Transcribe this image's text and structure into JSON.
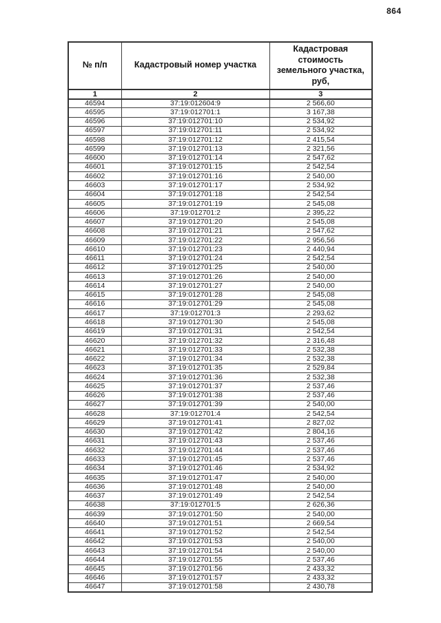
{
  "page": {
    "number": "864"
  },
  "table": {
    "headers": [
      "№ п/п",
      "Кадастровый номер участка",
      "Кадастровая стоимость земельного участка, руб,"
    ],
    "column_numbers": [
      "1",
      "2",
      "3"
    ],
    "rows": [
      [
        "46594",
        "37:19:012604:9",
        "2 566,60"
      ],
      [
        "46595",
        "37:19:012701:1",
        "3 167,38"
      ],
      [
        "46596",
        "37:19:012701:10",
        "2 534,92"
      ],
      [
        "46597",
        "37:19:012701:11",
        "2 534,92"
      ],
      [
        "46598",
        "37:19:012701:12",
        "2 415,54"
      ],
      [
        "46599",
        "37:19:012701:13",
        "2 321,56"
      ],
      [
        "46600",
        "37:19:012701:14",
        "2 547,62"
      ],
      [
        "46601",
        "37:19:012701:15",
        "2 542,54"
      ],
      [
        "46602",
        "37:19:012701:16",
        "2 540,00"
      ],
      [
        "46603",
        "37:19:012701:17",
        "2 534,92"
      ],
      [
        "46604",
        "37:19:012701:18",
        "2 542,54"
      ],
      [
        "46605",
        "37:19:012701:19",
        "2 545,08"
      ],
      [
        "46606",
        "37:19:012701:2",
        "2 395,22"
      ],
      [
        "46607",
        "37:19:012701:20",
        "2 545,08"
      ],
      [
        "46608",
        "37:19:012701:21",
        "2 547,62"
      ],
      [
        "46609",
        "37:19:012701:22",
        "2 956,56"
      ],
      [
        "46610",
        "37:19:012701:23",
        "2 440,94"
      ],
      [
        "46611",
        "37:19:012701:24",
        "2 542,54"
      ],
      [
        "46612",
        "37:19:012701:25",
        "2 540,00"
      ],
      [
        "46613",
        "37:19:012701:26",
        "2 540,00"
      ],
      [
        "46614",
        "37:19:012701:27",
        "2 540,00"
      ],
      [
        "46615",
        "37:19:012701:28",
        "2 545,08"
      ],
      [
        "46616",
        "37:19:012701:29",
        "2 545,08"
      ],
      [
        "46617",
        "37:19:012701:3",
        "2 293,62"
      ],
      [
        "46618",
        "37:19:012701:30",
        "2 545,08"
      ],
      [
        "46619",
        "37:19:012701:31",
        "2 542,54"
      ],
      [
        "46620",
        "37:19:012701:32",
        "2 316,48"
      ],
      [
        "46621",
        "37:19:012701:33",
        "2 532,38"
      ],
      [
        "46622",
        "37:19:012701:34",
        "2 532,38"
      ],
      [
        "46623",
        "37:19:012701:35",
        "2 529,84"
      ],
      [
        "46624",
        "37:19:012701:36",
        "2 532,38"
      ],
      [
        "46625",
        "37:19:012701:37",
        "2 537,46"
      ],
      [
        "46626",
        "37:19:012701:38",
        "2 537,46"
      ],
      [
        "46627",
        "37:19:012701:39",
        "2 540,00"
      ],
      [
        "46628",
        "37:19:012701:4",
        "2 542,54"
      ],
      [
        "46629",
        "37:19:012701:41",
        "2 827,02"
      ],
      [
        "46630",
        "37:19:012701:42",
        "2 804,16"
      ],
      [
        "46631",
        "37:19:012701:43",
        "2 537,46"
      ],
      [
        "46632",
        "37:19:012701:44",
        "2 537,46"
      ],
      [
        "46633",
        "37:19:012701:45",
        "2 537,46"
      ],
      [
        "46634",
        "37:19:012701:46",
        "2 534,92"
      ],
      [
        "46635",
        "37:19:012701:47",
        "2 540,00"
      ],
      [
        "46636",
        "37:19:012701:48",
        "2 540,00"
      ],
      [
        "46637",
        "37:19:012701:49",
        "2 542,54"
      ],
      [
        "46638",
        "37:19:012701:5",
        "2 626,36"
      ],
      [
        "46639",
        "37:19:012701:50",
        "2 540,00"
      ],
      [
        "46640",
        "37:19:012701:51",
        "2 669,54"
      ],
      [
        "46641",
        "37:19:012701:52",
        "2 542,54"
      ],
      [
        "46642",
        "37:19:012701:53",
        "2 540,00"
      ],
      [
        "46643",
        "37:19:012701:54",
        "2 540,00"
      ],
      [
        "46644",
        "37:19:012701:55",
        "2 537,46"
      ],
      [
        "46645",
        "37:19:012701:56",
        "2 433,32"
      ],
      [
        "46646",
        "37:19:012701:57",
        "2 433,32"
      ],
      [
        "46647",
        "37:19:012701:58",
        "2 430,78"
      ]
    ]
  }
}
